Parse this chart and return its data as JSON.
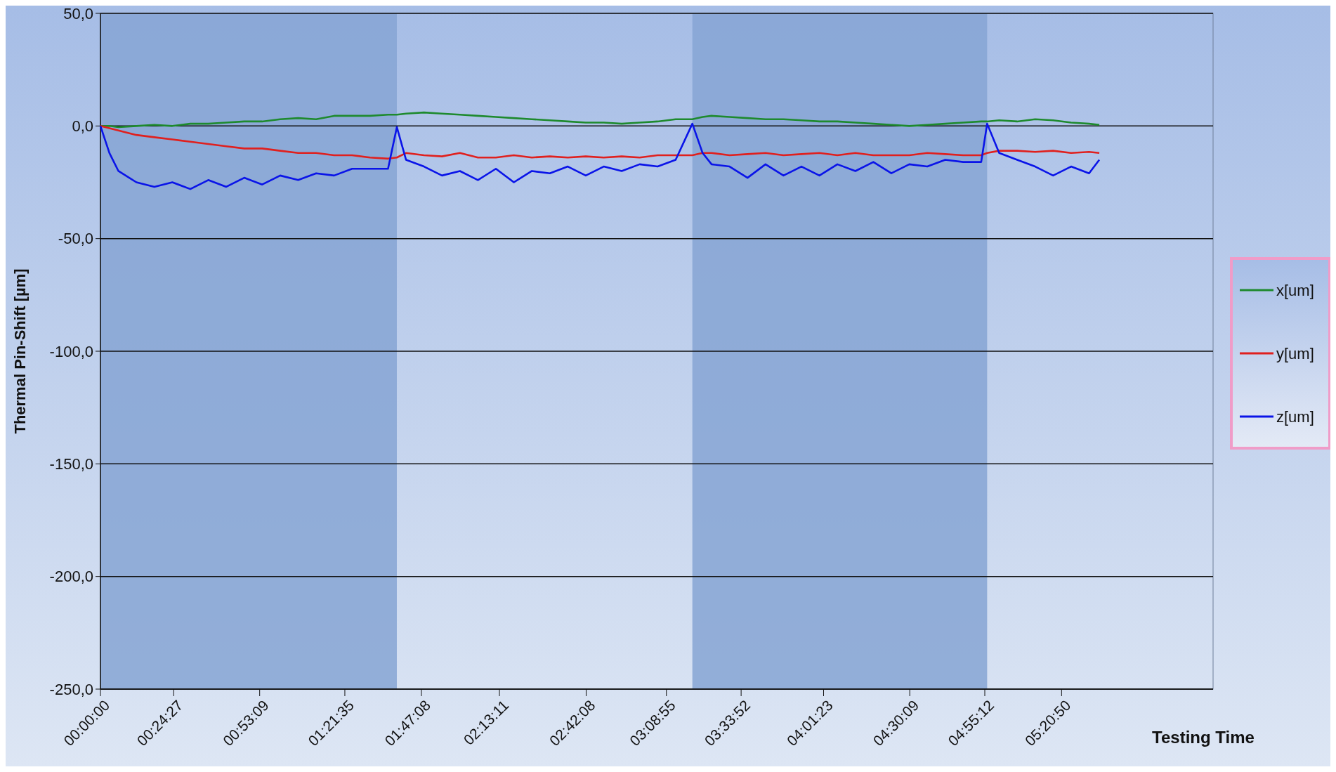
{
  "chart_data": {
    "type": "line",
    "xlabel": "Testing Time",
    "ylabel": "Thermal Pin-Shift [µm]",
    "x": [
      0,
      0.05,
      0.1,
      0.2,
      0.3,
      0.4,
      0.5,
      0.6,
      0.7,
      0.8,
      0.9,
      1.0,
      1.1,
      1.2,
      1.3,
      1.4,
      1.5,
      1.6,
      1.649,
      1.7,
      1.8,
      1.9,
      2.0,
      2.1,
      2.2,
      2.3,
      2.4,
      2.5,
      2.6,
      2.7,
      2.8,
      2.9,
      3.0,
      3.1,
      3.2,
      3.293,
      3.35,
      3.4,
      3.5,
      3.6,
      3.7,
      3.8,
      3.9,
      4.0,
      4.1,
      4.2,
      4.3,
      4.4,
      4.5,
      4.6,
      4.7,
      4.8,
      4.9,
      4.933,
      5.0,
      5.1,
      5.2,
      5.3,
      5.4,
      5.5,
      5.557
    ],
    "series": [
      {
        "name": "x[um]",
        "color": "#1e8a2e",
        "values": [
          0,
          0,
          -0.5,
          0,
          0.5,
          0,
          1,
          1,
          1.5,
          2,
          2,
          3,
          3.5,
          3,
          4.5,
          4.5,
          4.5,
          5,
          5,
          5.5,
          6,
          5.5,
          5,
          4.5,
          4,
          3.5,
          3,
          2.5,
          2,
          1.5,
          1.5,
          1,
          1.5,
          2,
          3,
          3,
          4,
          4.5,
          4,
          3.5,
          3,
          3,
          2.5,
          2,
          2,
          1.5,
          1,
          0.5,
          0,
          0.5,
          1,
          1.5,
          2,
          2,
          2.5,
          2,
          3,
          2.5,
          1.5,
          1,
          0.5
        ]
      },
      {
        "name": "y[um]",
        "color": "#e0201e",
        "values": [
          0,
          -1,
          -2,
          -4,
          -5,
          -6,
          -7,
          -8,
          -9,
          -10,
          -10,
          -11,
          -12,
          -12,
          -13,
          -13,
          -14,
          -14.5,
          -14,
          -12,
          -13,
          -13.5,
          -12,
          -14,
          -14,
          -13,
          -14,
          -13.5,
          -14,
          -13.5,
          -14,
          -13.5,
          -14,
          -13,
          -13,
          -13,
          -12,
          -12,
          -13,
          -12.5,
          -12,
          -13,
          -12.5,
          -12,
          -13,
          -12,
          -13,
          -13,
          -13,
          -12,
          -12.5,
          -13,
          -13,
          -12,
          -11,
          -11,
          -11.5,
          -11,
          -12,
          -11.5,
          -12
        ]
      },
      {
        "name": "z[um]",
        "color": "#0a14e8",
        "values": [
          0,
          -12,
          -20,
          -25,
          -27,
          -25,
          -28,
          -24,
          -27,
          -23,
          -26,
          -22,
          -24,
          -21,
          -22,
          -19,
          -19,
          -19,
          -0.5,
          -15,
          -18,
          -22,
          -20,
          -24,
          -19,
          -25,
          -20,
          -21,
          -18,
          -22,
          -18,
          -20,
          -17,
          -18,
          -15,
          1,
          -12,
          -17,
          -18,
          -23,
          -17,
          -22,
          -18,
          -22,
          -17,
          -20,
          -16,
          -21,
          -17,
          -18,
          -15,
          -16,
          -16,
          1,
          -12,
          -15,
          -18,
          -22,
          -18,
          -21,
          -15
        ]
      }
    ],
    "xlim": [
      0,
      6.19
    ],
    "xticks": [
      {
        "value": 0,
        "label": "00:00:00"
      },
      {
        "value": 0.4075,
        "label": "00:24:27"
      },
      {
        "value": 0.8858,
        "label": "00:53:09"
      },
      {
        "value": 1.3597,
        "label": "01:21:35"
      },
      {
        "value": 1.7856,
        "label": "01:47:08"
      },
      {
        "value": 2.2197,
        "label": "02:13:11"
      },
      {
        "value": 2.7022,
        "label": "02:42:08"
      },
      {
        "value": 3.1486,
        "label": "03:08:55"
      },
      {
        "value": 3.5644,
        "label": "03:33:52"
      },
      {
        "value": 4.0231,
        "label": "04:01:23"
      },
      {
        "value": 4.5025,
        "label": "04:30:09"
      },
      {
        "value": 4.92,
        "label": "04:55:12"
      },
      {
        "value": 5.3472,
        "label": "05:20:50"
      }
    ],
    "ylim": [
      -250,
      50
    ],
    "yticks": [
      {
        "value": -250,
        "label": "-250,0"
      },
      {
        "value": -200,
        "label": "-200,0"
      },
      {
        "value": -150,
        "label": "-150,0"
      },
      {
        "value": -100,
        "label": "-100,0"
      },
      {
        "value": -50,
        "label": "-50,0"
      },
      {
        "value": 0,
        "label": "0,0"
      },
      {
        "value": 50,
        "label": "50,0"
      }
    ],
    "bands": [
      {
        "axis": "x",
        "from": 0,
        "to": 1.649,
        "color": "#86a5d3"
      },
      {
        "axis": "x",
        "from": 3.293,
        "to": 4.933,
        "color": "#86a5d3"
      }
    ],
    "grid": "y",
    "legend": "right",
    "marker": "none",
    "line_style": "solid"
  }
}
